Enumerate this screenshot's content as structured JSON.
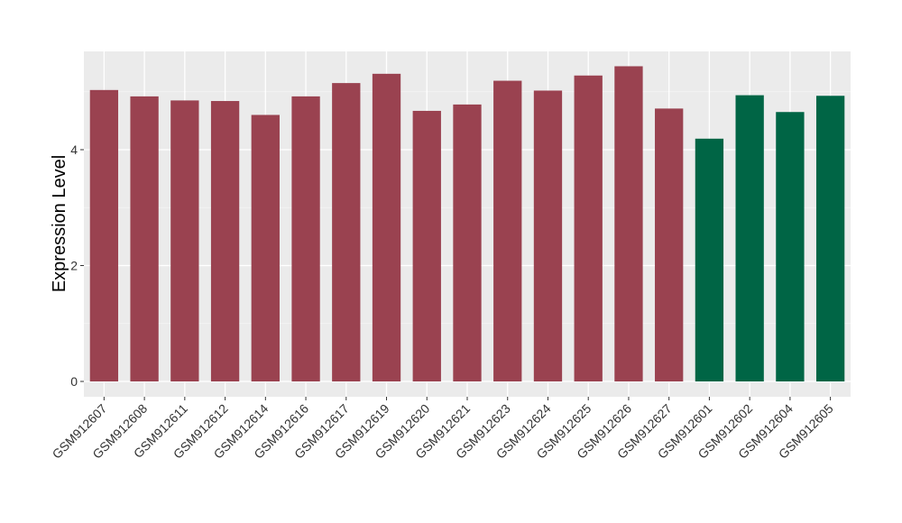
{
  "chart_data": {
    "type": "bar",
    "ylabel": "Expression Level",
    "xlabel": "",
    "ylim": [
      -0.28,
      5.7
    ],
    "yticks": [
      0,
      2,
      4
    ],
    "grid": true,
    "legend": "none",
    "colors": {
      "group1": "#9a4250",
      "group2": "#006545",
      "panel": "#ebebeb",
      "grid": "#ffffff"
    },
    "categories": [
      "GSM912607",
      "GSM912608",
      "GSM912611",
      "GSM912612",
      "GSM912614",
      "GSM912616",
      "GSM912617",
      "GSM912619",
      "GSM912620",
      "GSM912621",
      "GSM912623",
      "GSM912624",
      "GSM912625",
      "GSM912626",
      "GSM912627",
      "GSM912601",
      "GSM912602",
      "GSM912604",
      "GSM912605"
    ],
    "values": [
      5.03,
      4.92,
      4.85,
      4.84,
      4.6,
      4.92,
      5.15,
      5.31,
      4.67,
      4.78,
      5.19,
      5.02,
      5.28,
      5.44,
      4.71,
      4.19,
      4.94,
      4.65,
      4.93
    ],
    "groups": [
      1,
      1,
      1,
      1,
      1,
      1,
      1,
      1,
      1,
      1,
      1,
      1,
      1,
      1,
      1,
      2,
      2,
      2,
      2
    ]
  }
}
